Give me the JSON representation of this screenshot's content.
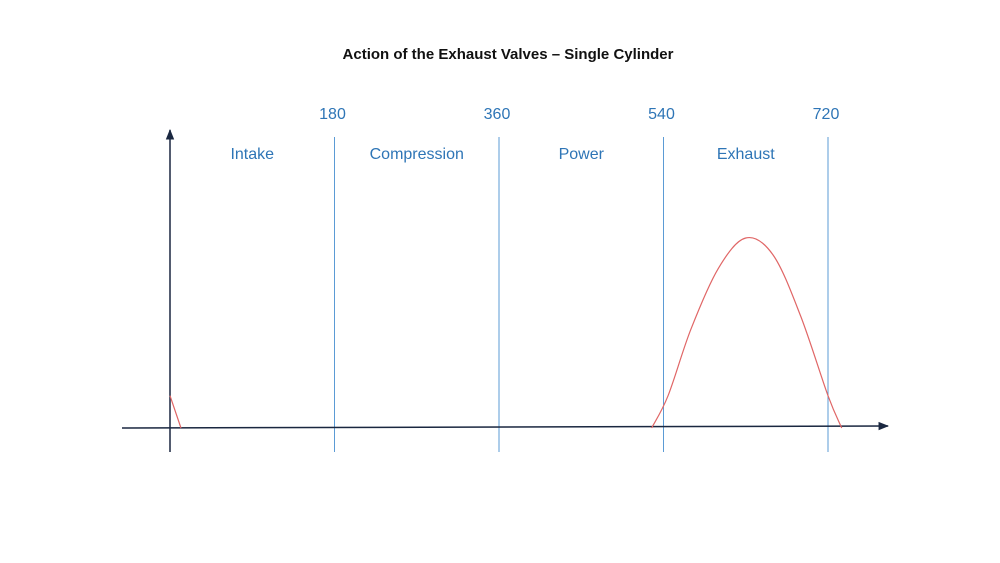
{
  "title": "Action of the Exhaust Valves – Single Cylinder",
  "colors": {
    "axis": "#1a2740",
    "divider": "#5b9bd5",
    "label": "#2e75b6",
    "curve": "#e06666",
    "title": "#111111"
  },
  "chart_data": {
    "type": "line",
    "x_ticks": [
      180,
      360,
      540,
      720
    ],
    "xlim": [
      0,
      720
    ],
    "strokes": [
      {
        "label": "Intake",
        "start": 0,
        "end": 180
      },
      {
        "label": "Compression",
        "start": 180,
        "end": 360
      },
      {
        "label": "Power",
        "start": 360,
        "end": 540
      },
      {
        "label": "Exhaust",
        "start": 540,
        "end": 720
      }
    ],
    "series": [
      {
        "x": [
          0,
          12
        ],
        "y": [
          0.17,
          0
        ]
      },
      {
        "x": [
          527,
          545,
          570,
          600,
          630,
          660,
          690,
          720,
          735
        ],
        "y": [
          0,
          0.17,
          0.52,
          0.84,
          1.0,
          0.91,
          0.59,
          0.17,
          0
        ]
      }
    ]
  }
}
